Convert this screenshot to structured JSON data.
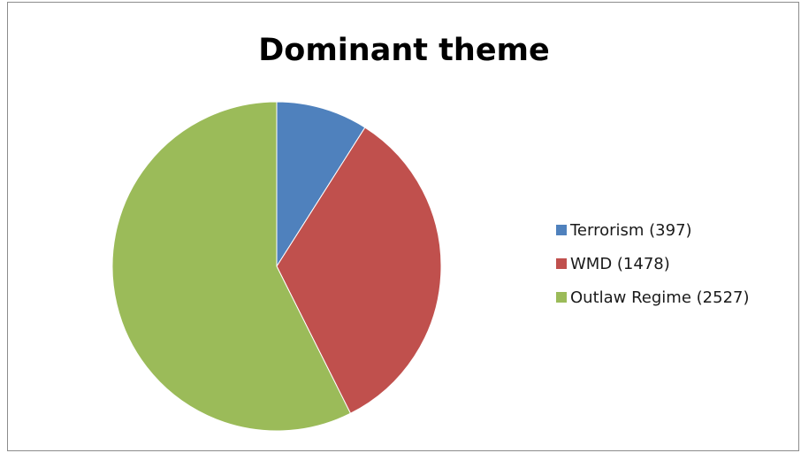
{
  "chart_data": {
    "type": "pie",
    "title": "Dominant theme",
    "slices": [
      {
        "label": "Terrorism (397)",
        "value": 397,
        "color": "#4f81bd"
      },
      {
        "label": "WMD (1478)",
        "value": 1478,
        "color": "#c0504d"
      },
      {
        "label": "Outlaw Regime (2527)",
        "value": 2527,
        "color": "#9bbb59"
      }
    ],
    "legend_placement": "right"
  }
}
